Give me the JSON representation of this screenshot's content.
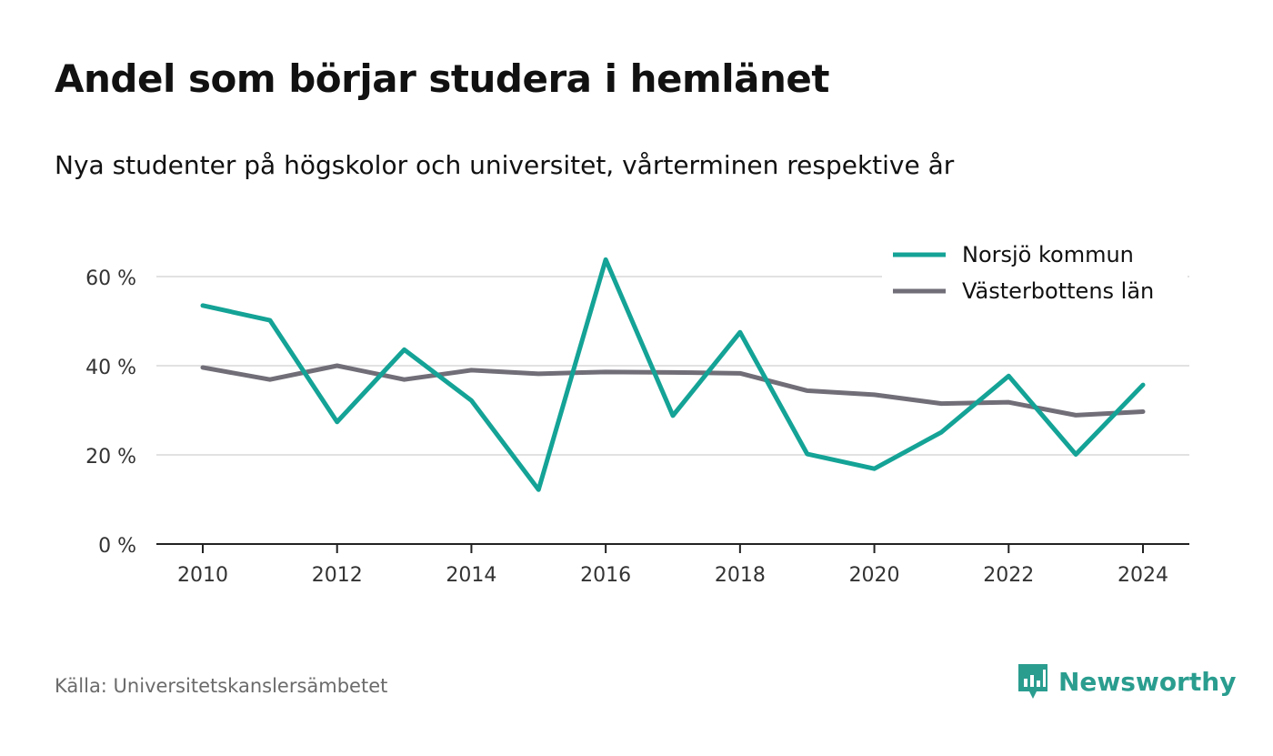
{
  "header": {
    "title": "Andel som börjar studera i hemlänet",
    "subtitle": "Nya studenter på högskolor och universitet, vårterminen respektive år"
  },
  "footer": {
    "source": "Källa: Universitetskanslersämbetet",
    "brand": "Newsworthy",
    "brand_color": "#2a9d8f"
  },
  "chart_data": {
    "type": "line",
    "title": "Andel som börjar studera i hemlänet",
    "subtitle": "Nya studenter på högskolor och universitet, vårterminen respektive år",
    "x": [
      2010,
      2011,
      2012,
      2013,
      2014,
      2015,
      2016,
      2017,
      2018,
      2019,
      2020,
      2021,
      2022,
      2023,
      2024
    ],
    "xticks": [
      2010,
      2012,
      2014,
      2016,
      2018,
      2020,
      2022,
      2024
    ],
    "ylim": [
      0,
      70
    ],
    "yticks": [
      0,
      20,
      40,
      60
    ],
    "ytick_labels": [
      "0 %",
      "20 %",
      "40 %",
      "60 %"
    ],
    "grid": "horizontal",
    "legend_position": "top-right",
    "series": [
      {
        "name": "Norsjö kommun",
        "color": "#14a396",
        "values": [
          53.5,
          50.2,
          27.4,
          43.6,
          32.2,
          12.2,
          63.8,
          28.8,
          47.5,
          20.2,
          16.9,
          25.1,
          37.7,
          20.1,
          35.7
        ]
      },
      {
        "name": "Västerbottens län",
        "color": "#716e78",
        "values": [
          39.6,
          36.9,
          40.0,
          36.9,
          39.0,
          38.2,
          38.6,
          38.5,
          38.3,
          34.4,
          33.5,
          31.5,
          31.8,
          28.9,
          29.7
        ]
      }
    ]
  }
}
